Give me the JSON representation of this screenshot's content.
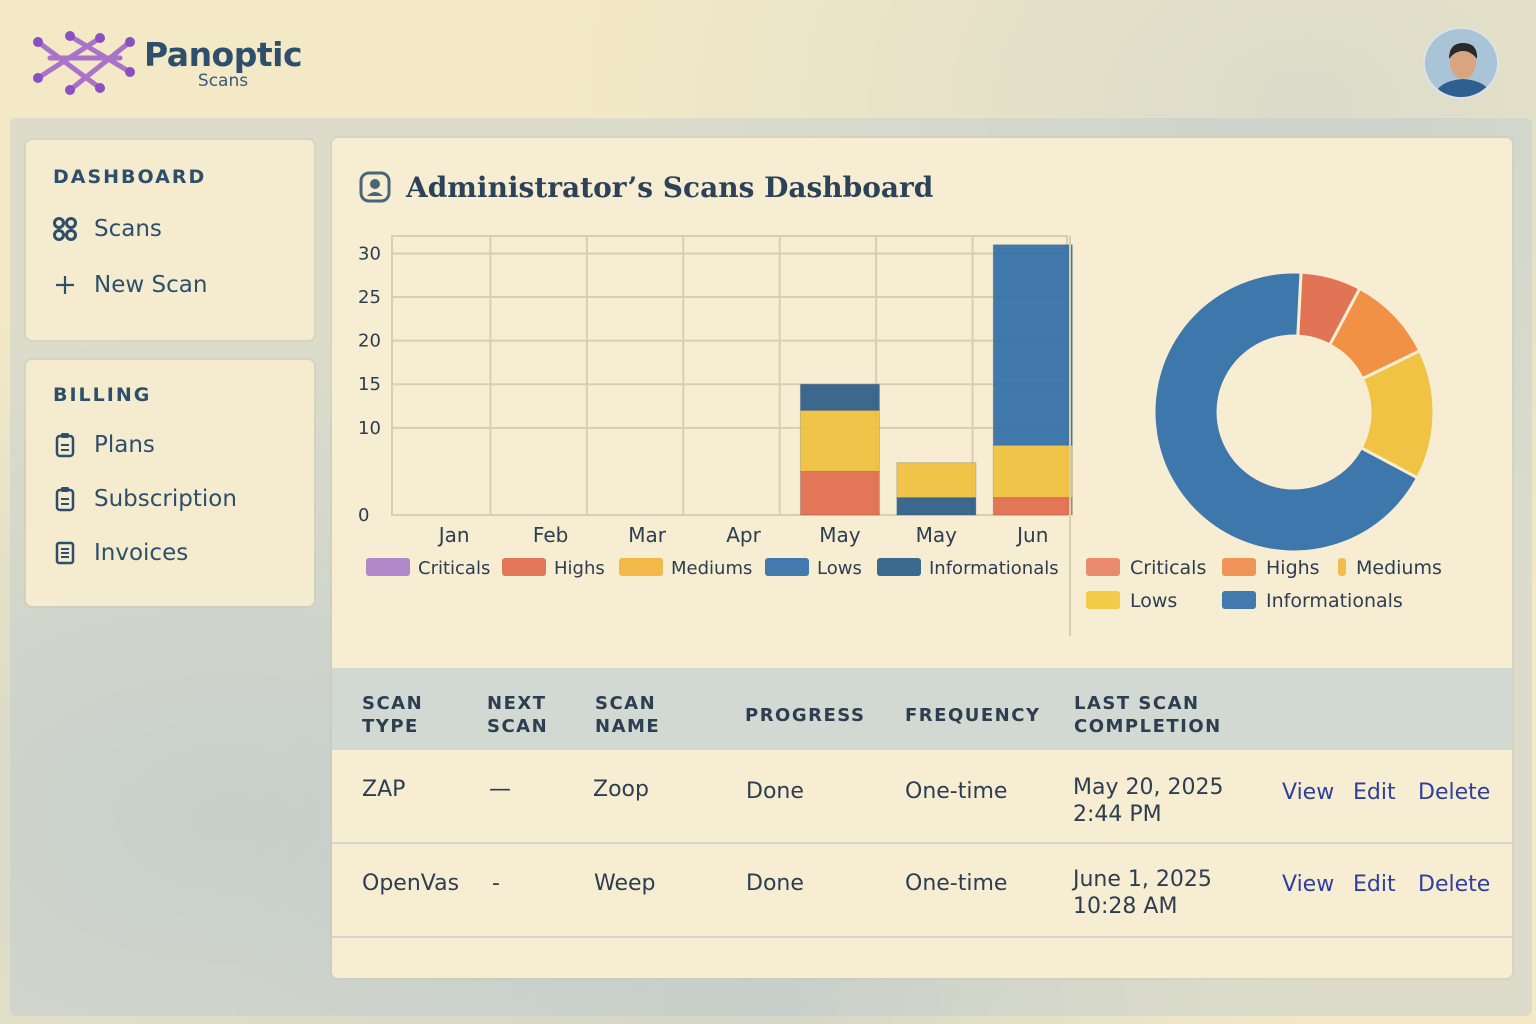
{
  "header": {
    "brand_name": "Panoptic",
    "brand_sub": "Scans"
  },
  "sidebar": {
    "sections": [
      {
        "heading": "DASHBOARD",
        "items": [
          {
            "label": "Scans",
            "icon": "grid-icon"
          },
          {
            "label": "New Scan",
            "icon": "plus-icon"
          }
        ]
      },
      {
        "heading": "BILLING",
        "items": [
          {
            "label": "Plans",
            "icon": "clipboard-icon"
          },
          {
            "label": "Subscription",
            "icon": "clipboard-icon"
          },
          {
            "label": "Invoices",
            "icon": "document-icon"
          }
        ]
      }
    ]
  },
  "main": {
    "title": "Administrator’s Scans Dashboard"
  },
  "chart_data": [
    {
      "type": "bar",
      "stacked": true,
      "categories": [
        "Jan",
        "Feb",
        "Mar",
        "Apr",
        "May",
        "May",
        "Jun"
      ],
      "yticks": [
        0,
        10,
        15,
        20,
        25,
        30
      ],
      "ylim": [
        0,
        32
      ],
      "grid": true,
      "legend_position": "bottom",
      "series": [
        {
          "name": "Criticals",
          "color": "#a87cc8",
          "values": [
            0,
            0,
            0,
            0,
            0,
            0,
            0
          ]
        },
        {
          "name": "Highs",
          "color": "#e06a4a",
          "values": [
            0,
            0,
            0,
            0,
            5,
            0,
            2
          ]
        },
        {
          "name": "Mediums",
          "color": "#f2b23a",
          "values": [
            0,
            0,
            0,
            0,
            0,
            0,
            0
          ]
        },
        {
          "name": "Lows",
          "color": "#2f6da8",
          "values": [
            0,
            0,
            0,
            0,
            0,
            0,
            23
          ]
        },
        {
          "name": "Informationals",
          "color": "#285a86",
          "values": [
            0,
            0,
            0,
            0,
            3,
            2,
            0
          ]
        }
      ],
      "extra_segments": [
        {
          "category_index": 4,
          "color": "#f0c03a",
          "value": 7,
          "order": 1
        },
        {
          "category_index": 5,
          "color": "#f0c03a",
          "value": 4,
          "order": 1
        },
        {
          "category_index": 6,
          "color": "#f0c03a",
          "value": 6,
          "order": 1
        }
      ]
    },
    {
      "type": "pie",
      "donut": true,
      "legend_position": "bottom",
      "slices": [
        {
          "name": "Criticals",
          "value": 7,
          "color": "#e06a4a"
        },
        {
          "name": "Highs",
          "value": 10,
          "color": "#f08a3a"
        },
        {
          "name": "Mediums",
          "value": 15,
          "color": "#f0c03a"
        },
        {
          "name": "Informationals",
          "value": 68,
          "color": "#2f6da8"
        }
      ],
      "legend": [
        {
          "name": "Criticals",
          "color": "#e88060"
        },
        {
          "name": "Highs",
          "color": "#f08a4a"
        },
        {
          "name": "Mediums",
          "color": "#f0b840"
        },
        {
          "name": "Lows",
          "color": "#f2c63a"
        },
        {
          "name": "Informationals",
          "color": "#2f6da8"
        }
      ]
    }
  ],
  "table": {
    "columns": [
      "SCAN\nTYPE",
      "NEXT\nSCAN",
      "SCAN\nNAME",
      "PROGRESS",
      "FREQUENCY",
      "LAST SCAN\nCOMPLETION"
    ],
    "rows": [
      {
        "type": "ZAP",
        "next": "—",
        "name": "Zoop",
        "progress": "Done",
        "frequency": "One-time",
        "last": "May 20, 2025\n2:44 PM"
      },
      {
        "type": "OpenVas",
        "next": "-",
        "name": "Weep",
        "progress": "Done",
        "frequency": "One-time",
        "last": "June 1, 2025\n10:28 AM"
      }
    ],
    "actions": [
      "View",
      "Edit",
      "Delete"
    ]
  }
}
